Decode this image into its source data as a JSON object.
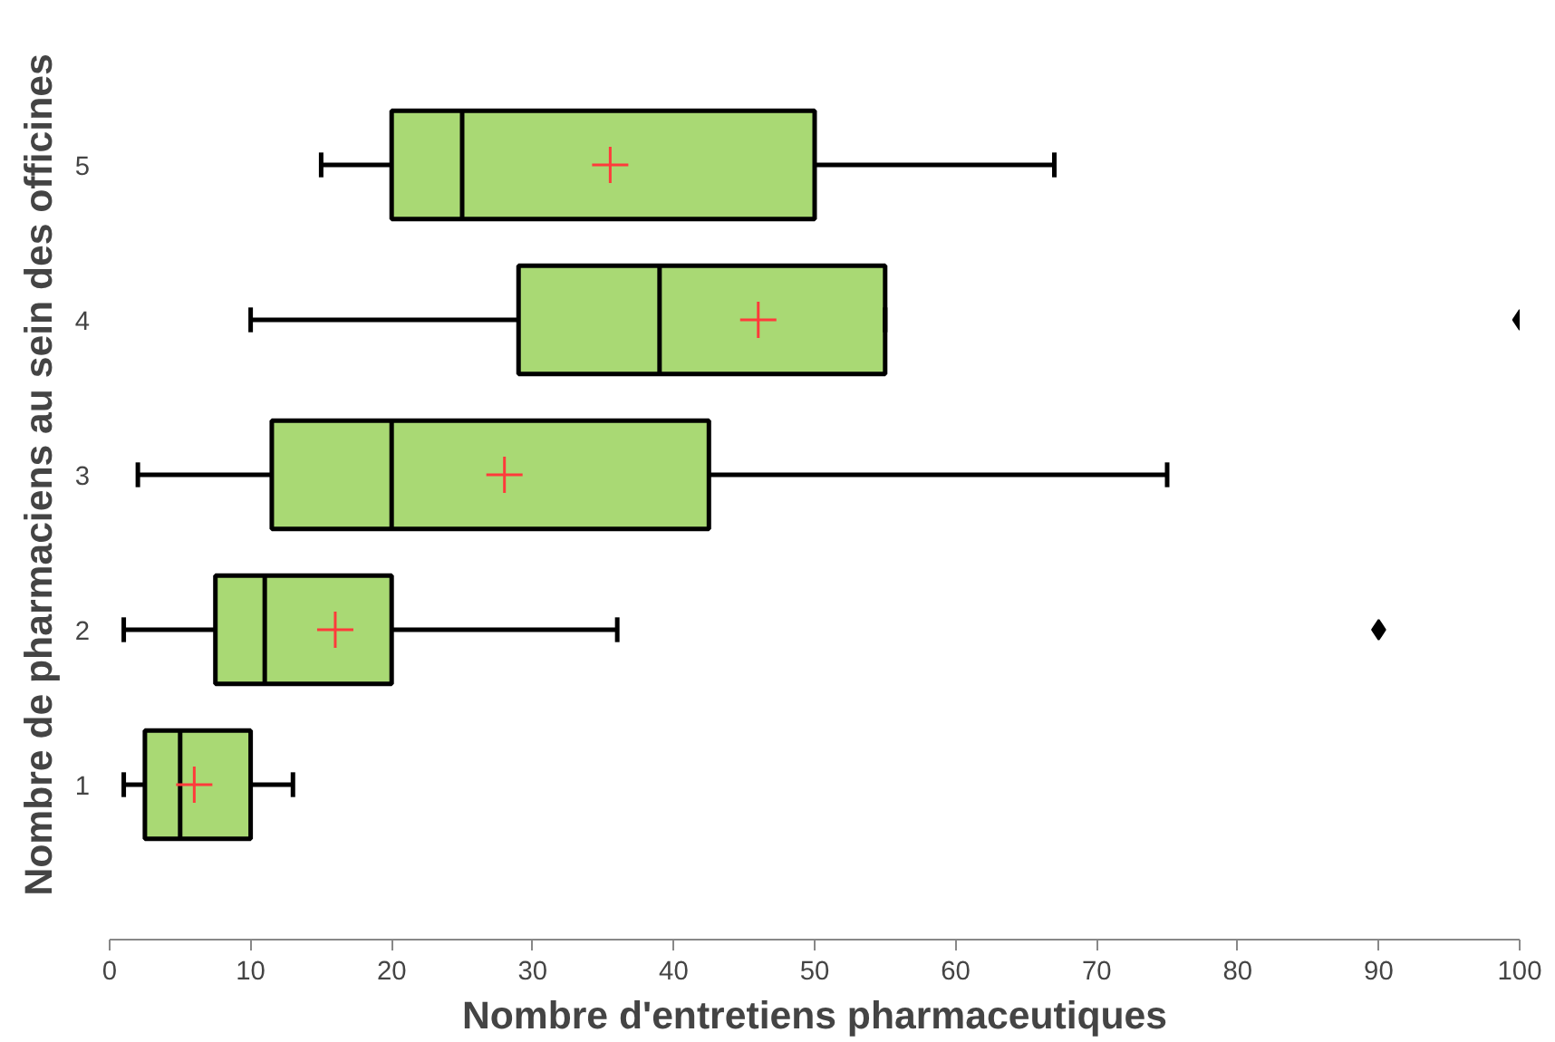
{
  "chart_data": {
    "type": "box",
    "orientation": "horizontal",
    "xlabel": "Nombre d'entretiens pharmaceutiques",
    "ylabel": "Nombre de pharmaciens au sein des officines",
    "categories": [
      "5",
      "4",
      "3",
      "2",
      "1"
    ],
    "boxes": [
      {
        "low": 15,
        "q1": 20,
        "median": 25,
        "q3": 50,
        "high": 67,
        "mean": 35.5
      },
      {
        "low": 10,
        "q1": 29,
        "median": 39,
        "q3": 55,
        "high": 55,
        "mean": 46,
        "outliers": [
          100
        ]
      },
      {
        "low": 2,
        "q1": 11.5,
        "median": 20,
        "q3": 42.5,
        "high": 75,
        "mean": 28
      },
      {
        "low": 1,
        "q1": 7.5,
        "median": 11,
        "q3": 20,
        "high": 36,
        "mean": 16,
        "outliers": [
          90
        ]
      },
      {
        "low": 1,
        "q1": 2.5,
        "median": 5,
        "q3": 10,
        "high": 13,
        "mean": 6
      }
    ],
    "color": "#a9d974",
    "xlim": [
      0,
      100
    ],
    "xticks": [
      0,
      10,
      20,
      30,
      40,
      50,
      60,
      70,
      80,
      90,
      100
    ],
    "grid": false
  }
}
